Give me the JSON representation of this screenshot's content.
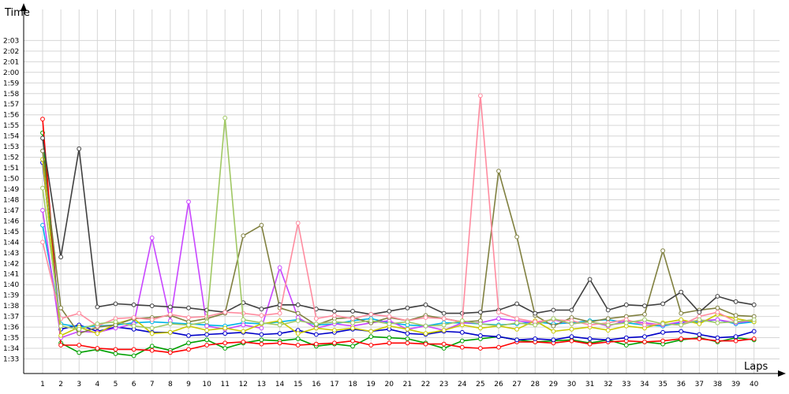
{
  "chart_data": {
    "type": "line",
    "ylabel": "Time",
    "xlabel": "Laps",
    "x": [
      1,
      2,
      3,
      4,
      5,
      6,
      7,
      8,
      9,
      10,
      11,
      12,
      13,
      14,
      15,
      16,
      17,
      18,
      19,
      20,
      21,
      22,
      23,
      24,
      25,
      26,
      27,
      28,
      29,
      30,
      31,
      32,
      33,
      34,
      35,
      36,
      37,
      38,
      39,
      40
    ],
    "x_tick_labels": [
      "1",
      "2",
      "3",
      "4",
      "5",
      "6",
      "7",
      "8",
      "9",
      "10",
      "11",
      "12",
      "13",
      "14",
      "15",
      "16",
      "17",
      "18",
      "19",
      "20",
      "21",
      "22",
      "23",
      "24",
      "25",
      "26",
      "27",
      "28",
      "29",
      "30",
      "31",
      "32",
      "33",
      "34",
      "35",
      "36",
      "37",
      "38",
      "39",
      "40"
    ],
    "y_unit": "seconds (m:ss)",
    "y_tick_values": [
      93,
      94,
      95,
      96,
      97,
      98,
      99,
      100,
      101,
      102,
      103,
      104,
      105,
      106,
      107,
      108,
      109,
      110,
      111,
      112,
      113,
      114,
      115,
      116,
      117,
      118,
      119,
      120,
      121,
      122,
      123
    ],
    "y_tick_labels": [
      "1:33",
      "1:34",
      "1:35",
      "1:36",
      "1:37",
      "1:38",
      "1:39",
      "1:40",
      "1:41",
      "1:42",
      "1:43",
      "1:44",
      "1:45",
      "1:46",
      "1:47",
      "1:48",
      "1:49",
      "1:50",
      "1:51",
      "1:52",
      "1:53",
      "1:54",
      "1:55",
      "1:56",
      "1:57",
      "1:58",
      "1:59",
      "2:00",
      "2:01",
      "2:02",
      "2:03"
    ],
    "ylim": [
      92,
      124.5
    ],
    "grid": true,
    "series": [
      {
        "color": "#00a000",
        "values": [
          114.3,
          94.5,
          93.6,
          93.9,
          93.5,
          93.3,
          94.2,
          93.8,
          94.5,
          94.8,
          94.0,
          94.5,
          94.8,
          94.7,
          94.9,
          94.2,
          94.4,
          94.2,
          95.1,
          95.0,
          94.9,
          94.5,
          94.0,
          94.7,
          94.9,
          95.1,
          94.8,
          94.6,
          94.7,
          94.8,
          94.5,
          94.8,
          94.3,
          94.6,
          94.4,
          94.8,
          95.0,
          94.6,
          95.0,
          94.8
        ]
      },
      {
        "color": "#ff0000",
        "values": [
          115.6,
          94.3,
          94.3,
          94.0,
          93.9,
          93.9,
          93.8,
          93.6,
          93.9,
          94.3,
          94.5,
          94.6,
          94.4,
          94.5,
          94.3,
          94.4,
          94.5,
          94.7,
          94.3,
          94.5,
          94.5,
          94.4,
          94.4,
          94.1,
          94.0,
          94.1,
          94.6,
          94.6,
          94.5,
          94.7,
          94.4,
          94.6,
          94.7,
          94.6,
          94.7,
          94.9,
          94.9,
          94.7,
          94.7,
          94.9
        ]
      },
      {
        "color": "#0000c8",
        "values": [
          111.5,
          95.8,
          96.2,
          95.6,
          96.0,
          95.8,
          95.5,
          95.5,
          95.2,
          95.3,
          95.4,
          95.5,
          95.3,
          95.4,
          95.7,
          95.3,
          95.5,
          95.8,
          95.6,
          95.8,
          95.4,
          95.3,
          95.6,
          95.5,
          95.2,
          95.1,
          94.8,
          94.9,
          94.8,
          95.1,
          94.9,
          94.8,
          95.0,
          95.1,
          95.5,
          95.6,
          95.3,
          95.0,
          95.1,
          95.6
        ]
      },
      {
        "color": "#00b4e6",
        "values": [
          105.6,
          96.3,
          96.0,
          96.1,
          96.2,
          96.4,
          96.5,
          96.4,
          96.3,
          96.2,
          96.1,
          96.4,
          96.3,
          96.5,
          96.7,
          96.2,
          96.3,
          96.6,
          96.8,
          96.4,
          96.2,
          96.1,
          96.4,
          96.4,
          96.3,
          96.2,
          96.3,
          96.5,
          96.3,
          96.4,
          96.6,
          96.7,
          96.4,
          96.2,
          96.1,
          96.4,
          96.5,
          96.7,
          96.3,
          96.5
        ]
      },
      {
        "color": "#c846ff",
        "values": [
          107.0,
          95.0,
          95.6,
          95.5,
          95.9,
          96.3,
          104.4,
          96.6,
          107.8,
          96.1,
          95.8,
          96.2,
          95.9,
          101.6,
          96.9,
          95.9,
          96.3,
          96.1,
          96.4,
          96.6,
          95.8,
          96.1,
          95.7,
          96.4,
          96.4,
          96.8,
          96.6,
          96.4,
          96.7,
          96.3,
          96.5,
          96.1,
          96.6,
          96.4,
          96.2,
          96.5,
          96.6,
          96.7,
          96.4,
          96.6
        ]
      },
      {
        "color": "#c8c800",
        "values": [
          111.8,
          95.2,
          96.0,
          95.4,
          96.3,
          96.8,
          95.4,
          95.5,
          96.1,
          95.7,
          95.9,
          95.6,
          96.3,
          96.6,
          95.4,
          95.9,
          95.7,
          95.9,
          95.6,
          96.1,
          95.8,
          95.4,
          95.7,
          96.2,
          95.9,
          96.1,
          95.8,
          96.6,
          95.6,
          95.8,
          96.0,
          95.7,
          96.1,
          95.9,
          96.4,
          96.7,
          96.3,
          97.2,
          96.8,
          96.5
        ]
      },
      {
        "color": "#808040",
        "values": [
          112.6,
          97.8,
          95.4,
          96.0,
          96.2,
          96.8,
          96.9,
          97.1,
          96.5,
          96.8,
          97.3,
          104.6,
          105.6,
          97.8,
          97.3,
          96.2,
          96.8,
          96.9,
          96.4,
          96.9,
          96.6,
          97.1,
          96.8,
          96.5,
          96.6,
          110.7,
          104.5,
          97.1,
          96.1,
          96.9,
          96.5,
          96.8,
          97.0,
          97.2,
          103.2,
          97.3,
          97.6,
          97.8,
          97.1,
          97.0
        ]
      },
      {
        "color": "#404040",
        "values": [
          113.8,
          102.6,
          112.8,
          97.9,
          98.2,
          98.1,
          98.0,
          97.9,
          97.8,
          97.6,
          97.4,
          98.3,
          97.7,
          98.1,
          98.1,
          97.7,
          97.5,
          97.5,
          97.2,
          97.5,
          97.8,
          98.1,
          97.3,
          97.3,
          97.4,
          97.6,
          98.2,
          97.3,
          97.6,
          97.6,
          100.5,
          97.6,
          98.1,
          98.0,
          98.2,
          99.3,
          97.4,
          98.9,
          98.4,
          98.1
        ]
      },
      {
        "color": "#ff8ca0",
        "values": [
          104.0,
          96.8,
          97.3,
          96.1,
          96.8,
          96.9,
          96.7,
          97.2,
          96.9,
          97.0,
          97.4,
          97.3,
          97.1,
          97.3,
          105.8,
          96.8,
          97.1,
          96.8,
          97.2,
          97.0,
          96.6,
          96.9,
          96.8,
          96.5,
          117.8,
          97.4,
          96.8,
          96.5,
          96.7,
          96.6,
          96.2,
          96.4,
          96.7,
          96.2,
          96.3,
          96.2,
          97.0,
          97.4,
          96.5,
          96.7
        ]
      },
      {
        "color": "#a0c864",
        "values": [
          109.1,
          96.1,
          95.8,
          96.3,
          96.5,
          96.1,
          95.9,
          96.3,
          96.2,
          96.5,
          115.7,
          96.7,
          96.4,
          96.2,
          96.6,
          96.3,
          96.5,
          96.4,
          96.6,
          96.3,
          96.5,
          96.1,
          96.2,
          96.6,
          96.3,
          96.1,
          96.4,
          96.2,
          96.8,
          96.3,
          96.5,
          96.2,
          96.4,
          96.7,
          96.3,
          96.2,
          96.7,
          96.4,
          96.5,
          96.7
        ]
      }
    ]
  }
}
